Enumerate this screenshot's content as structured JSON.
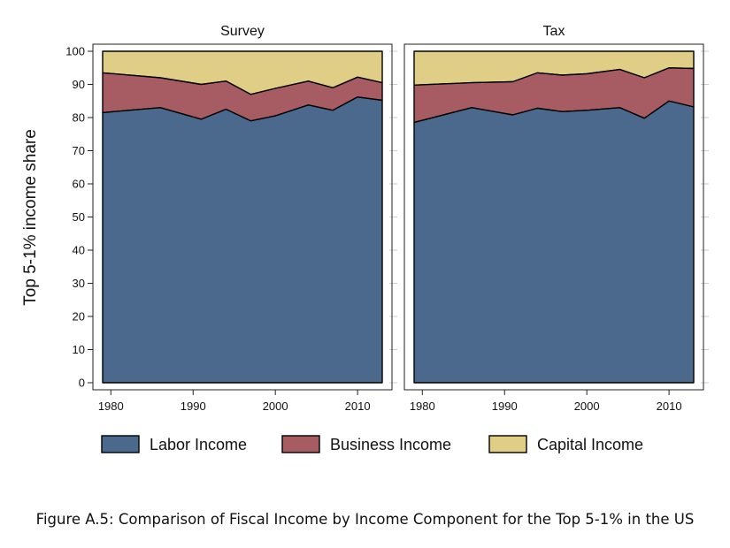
{
  "caption": "Figure A.5: Comparison of Fiscal Income by Income Component for the Top 5-1% in the US",
  "chart_data": {
    "type": "area",
    "stacked": true,
    "ylabel": "Top 5-1% income share",
    "ylim": [
      0,
      100
    ],
    "yticks": [
      0,
      10,
      20,
      30,
      40,
      50,
      60,
      70,
      80,
      90,
      100
    ],
    "xlim": [
      1979,
      2013
    ],
    "xticks": [
      1980,
      1990,
      2000,
      2010
    ],
    "grid": false,
    "legend_position": "bottom",
    "legend": [
      {
        "key": "labor",
        "name": "Labor Income",
        "color": "#4a698c"
      },
      {
        "key": "business",
        "name": "Business Income",
        "color": "#a65c62"
      },
      {
        "key": "capital",
        "name": "Capital Income",
        "color": "#e0cd86"
      }
    ],
    "panels": [
      {
        "title": "Survey",
        "x": [
          1979,
          1986,
          1991,
          1994,
          1997,
          2000,
          2004,
          2007,
          2010,
          2013
        ],
        "cumulative": {
          "labor": [
            81.5,
            83.0,
            79.5,
            82.5,
            79.0,
            80.5,
            83.8,
            82.2,
            86.2,
            85.2
          ],
          "business": [
            93.5,
            92.0,
            90.0,
            91.0,
            87.0,
            88.8,
            91.0,
            89.0,
            92.2,
            90.5
          ],
          "capital": [
            100,
            100,
            100,
            100,
            100,
            100,
            100,
            100,
            100,
            100
          ]
        }
      },
      {
        "title": "Tax",
        "x": [
          1979,
          1986,
          1991,
          1994,
          1997,
          2000,
          2004,
          2007,
          2010,
          2013
        ],
        "cumulative": {
          "labor": [
            78.5,
            83.0,
            80.8,
            82.8,
            81.8,
            82.2,
            83.0,
            79.8,
            85.0,
            83.2
          ],
          "business": [
            89.8,
            90.5,
            90.8,
            93.5,
            92.8,
            93.2,
            94.5,
            92.0,
            95.0,
            94.8
          ],
          "capital": [
            100,
            100,
            100,
            100,
            100,
            100,
            100,
            100,
            100,
            100
          ]
        }
      }
    ]
  }
}
